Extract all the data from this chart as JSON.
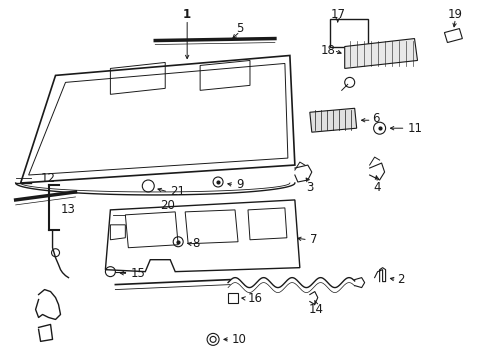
{
  "bg_color": "#ffffff",
  "gray": "#1a1a1a",
  "fig_w": 4.89,
  "fig_h": 3.6,
  "dpi": 100
}
